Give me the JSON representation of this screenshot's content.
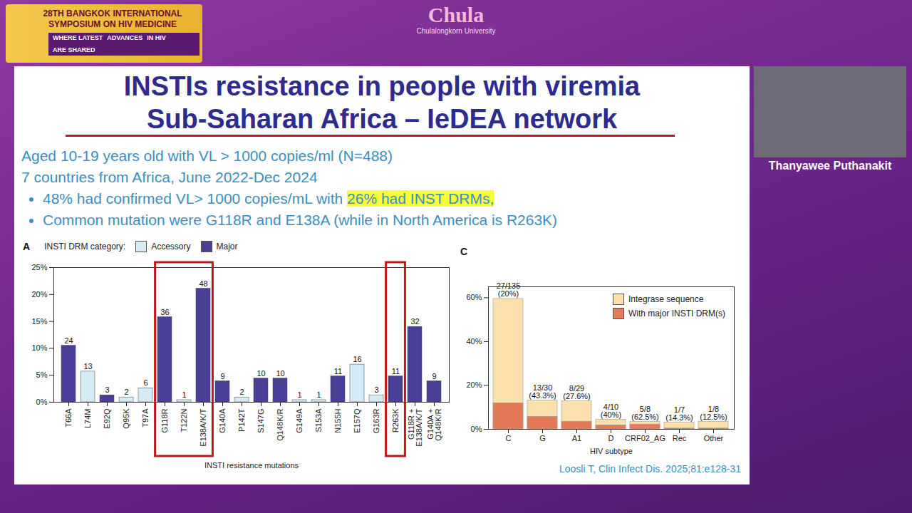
{
  "header": {
    "event": [
      "28TH BANGKOK INTERNATIONAL",
      "SYMPOSIUM ON HIV MEDICINE"
    ],
    "tagline": [
      "WHERE LATEST",
      "ADVANCES",
      "IN HIV",
      "ARE SHARED"
    ],
    "logo": "Chula",
    "logo_subtitle": "Chulalongkorn University"
  },
  "slide": {
    "title": [
      "INSTIs resistance in people with viremia",
      "Sub-Saharan Africa – IeDEA network"
    ],
    "lines": [
      "Aged 10-19 years old with VL > 1000 copies/ml (N=488)",
      "7 countries from Africa, June 2022-Dec 2024"
    ],
    "bullets": [
      [
        {
          "text": "48% had confirmed VL> 1000 copies/mL with "
        },
        {
          "text": "26% had INST DRMs,",
          "highlight": true
        }
      ],
      [
        {
          "text": "Common mutation were G118R and E138A (while in North America is R263K)"
        }
      ]
    ],
    "citation": "Loosli T, Clin Infect Dis. 2025;81:e128-31",
    "speaker": "Thanyawee Puthanakit"
  },
  "chart_data": [
    {
      "type": "bar",
      "panel_label": "A",
      "legend_title": "INSTI DRM category:",
      "legend": "top-left",
      "categories": [
        "T66A",
        "L74M",
        "E92Q",
        "Q95K",
        "T97A",
        "G118R",
        "T122N",
        "E138A/K/T",
        "G140A",
        "P142T",
        "S147G",
        "Q148K/R",
        "G149A",
        "S153A",
        "N155H",
        "E157Q",
        "G163R",
        "R263K",
        "G118R + E138A/K/T",
        "G140A + Q148K/R"
      ],
      "values": [
        10.5,
        5.7,
        1.3,
        0.9,
        2.6,
        15.8,
        0.4,
        21.1,
        3.9,
        0.9,
        4.4,
        4.4,
        0.4,
        0.4,
        4.8,
        7.0,
        1.3,
        4.8,
        14.0,
        3.9
      ],
      "counts": [
        24,
        13,
        3,
        2,
        6,
        36,
        1,
        48,
        9,
        2,
        10,
        10,
        1,
        1,
        11,
        16,
        3,
        11,
        32,
        9
      ],
      "category_group": [
        "Major",
        "Accessory",
        "Major",
        "Accessory",
        "Accessory",
        "Major",
        "Accessory",
        "Major",
        "Major",
        "Accessory",
        "Major",
        "Major",
        "Accessory",
        "Accessory",
        "Major",
        "Accessory",
        "Accessory",
        "Major",
        "Major",
        "Major"
      ],
      "groups": [
        {
          "name": "Accessory",
          "color": "#d5ebf6"
        },
        {
          "name": "Major",
          "color": "#4a3f96"
        }
      ],
      "highlight_boxes": [
        [
          "G118R",
          "E138A/K/T"
        ],
        [
          "R263K",
          "R263K"
        ]
      ],
      "x_label": "INSTI resistance mutations",
      "ylim": [
        0,
        25
      ],
      "yticks": [
        {
          "value": 0,
          "label": "0%"
        },
        {
          "value": 5,
          "label": "5%"
        },
        {
          "value": 10,
          "label": "10%"
        },
        {
          "value": 15,
          "label": "15%"
        },
        {
          "value": 20,
          "label": "20%"
        },
        {
          "value": 25,
          "label": "25%"
        }
      ],
      "grid": false
    },
    {
      "type": "bar",
      "panel_label": "C",
      "legend": "top-right",
      "stacked": false,
      "categories": [
        "C",
        "G",
        "A1",
        "D",
        "CRF02_AG",
        "Rec",
        "Other"
      ],
      "series": [
        {
          "name": "Integrase sequence",
          "color": "#fbe0ae",
          "values": [
            59.5,
            13.2,
            12.8,
            4.4,
            3.5,
            3.1,
            3.5
          ]
        },
        {
          "name": "With major INSTI DRM(s)",
          "color": "#e4795a",
          "values": [
            11.9,
            5.7,
            3.5,
            1.8,
            2.2,
            0.4,
            0.4
          ]
        }
      ],
      "bar_labels": [
        [
          "27/135",
          "(20%)"
        ],
        [
          "13/30",
          "(43.3%)"
        ],
        [
          "8/29",
          "(27.6%)"
        ],
        [
          "4/10",
          "(40%)"
        ],
        [
          "5/8",
          "(62.5%)"
        ],
        [
          "1/7",
          "(14.3%)"
        ],
        [
          "1/8",
          "(12.5%)"
        ]
      ],
      "x_label": "HIV subtype",
      "ylim": [
        0,
        65
      ],
      "yticks": [
        {
          "value": 0,
          "label": "0%"
        },
        {
          "value": 20,
          "label": "20%"
        },
        {
          "value": 40,
          "label": "40%"
        },
        {
          "value": 60,
          "label": "60%"
        }
      ],
      "grid": false
    }
  ]
}
